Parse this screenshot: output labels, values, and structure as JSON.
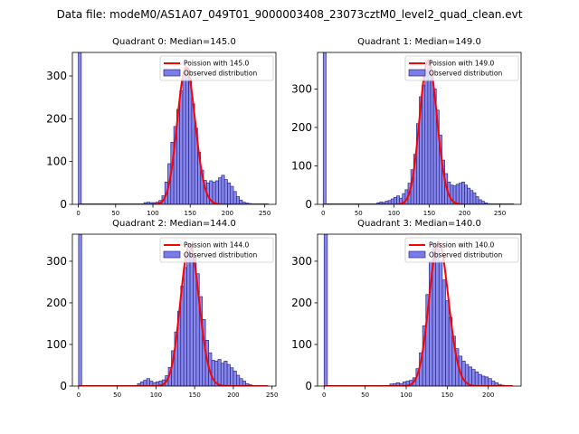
{
  "figure_title": "Data file: modeM0/AS1A07_049T01_9000003408_23073cztM0_level2_quad_clean.evt",
  "colors": {
    "bar_fill": "#7b7bea",
    "bar_edge": "#2a2a8c",
    "poisson_line": "#ff0000",
    "axes": "#000000"
  },
  "chart_data": [
    {
      "type": "bar",
      "title": "Quadrant 0: Median=145.0",
      "median": 145.0,
      "xlim": [
        -8,
        265
      ],
      "ylim": [
        0,
        355
      ],
      "xticks": [
        0,
        50,
        100,
        150,
        200,
        250
      ],
      "yticks": [
        0,
        100,
        200,
        300
      ],
      "bin_width": 4,
      "bins": [
        [
          0,
          355
        ],
        [
          88,
          4
        ],
        [
          92,
          5
        ],
        [
          96,
          4
        ],
        [
          100,
          4
        ],
        [
          104,
          5
        ],
        [
          108,
          9
        ],
        [
          112,
          20
        ],
        [
          116,
          52
        ],
        [
          120,
          95
        ],
        [
          124,
          145
        ],
        [
          128,
          182
        ],
        [
          132,
          222
        ],
        [
          136,
          265
        ],
        [
          140,
          305
        ],
        [
          144,
          320
        ],
        [
          148,
          292
        ],
        [
          152,
          235
        ],
        [
          156,
          178
        ],
        [
          160,
          122
        ],
        [
          164,
          80
        ],
        [
          168,
          56
        ],
        [
          172,
          50
        ],
        [
          176,
          55
        ],
        [
          180,
          52
        ],
        [
          184,
          55
        ],
        [
          188,
          62
        ],
        [
          192,
          68
        ],
        [
          196,
          58
        ],
        [
          200,
          50
        ],
        [
          204,
          42
        ],
        [
          208,
          30
        ],
        [
          212,
          18
        ],
        [
          216,
          10
        ],
        [
          220,
          5
        ],
        [
          224,
          3
        ],
        [
          228,
          2
        ]
      ],
      "legend": {
        "line_label": "Poission with 145.0",
        "bar_label": "Observed distribution",
        "location": "upper right"
      }
    },
    {
      "type": "bar",
      "title": "Quadrant 1: Median=149.0",
      "median": 149.0,
      "xlim": [
        -8,
        280
      ],
      "ylim": [
        0,
        395
      ],
      "xticks": [
        0,
        50,
        100,
        150,
        200,
        250
      ],
      "yticks": [
        0,
        100,
        200,
        300
      ],
      "bin_width": 4,
      "bins": [
        [
          0,
          395
        ],
        [
          76,
          4
        ],
        [
          80,
          6
        ],
        [
          84,
          5
        ],
        [
          88,
          8
        ],
        [
          92,
          10
        ],
        [
          96,
          14
        ],
        [
          100,
          18
        ],
        [
          104,
          22
        ],
        [
          108,
          16
        ],
        [
          112,
          28
        ],
        [
          116,
          38
        ],
        [
          120,
          55
        ],
        [
          124,
          90
        ],
        [
          128,
          130
        ],
        [
          132,
          210
        ],
        [
          136,
          280
        ],
        [
          140,
          310
        ],
        [
          144,
          350
        ],
        [
          148,
          375
        ],
        [
          152,
          340
        ],
        [
          156,
          300
        ],
        [
          160,
          245
        ],
        [
          164,
          180
        ],
        [
          168,
          115
        ],
        [
          172,
          80
        ],
        [
          176,
          58
        ],
        [
          180,
          50
        ],
        [
          184,
          48
        ],
        [
          188,
          52
        ],
        [
          192,
          55
        ],
        [
          196,
          58
        ],
        [
          200,
          50
        ],
        [
          204,
          42
        ],
        [
          208,
          36
        ],
        [
          212,
          30
        ],
        [
          216,
          20
        ],
        [
          220,
          12
        ],
        [
          224,
          8
        ],
        [
          228,
          4
        ],
        [
          232,
          2
        ]
      ],
      "legend": {
        "line_label": "Poission with 149.0",
        "bar_label": "Observed distribution",
        "location": "upper right"
      }
    },
    {
      "type": "bar",
      "title": "Quadrant 2: Median=144.0",
      "median": 144.0,
      "xlim": [
        -8,
        255
      ],
      "ylim": [
        0,
        365
      ],
      "xticks": [
        0,
        50,
        100,
        150,
        200,
        250
      ],
      "yticks": [
        0,
        100,
        200,
        300
      ],
      "bin_width": 4,
      "bins": [
        [
          0,
          365
        ],
        [
          76,
          6
        ],
        [
          80,
          10
        ],
        [
          84,
          14
        ],
        [
          88,
          18
        ],
        [
          92,
          12
        ],
        [
          96,
          8
        ],
        [
          100,
          10
        ],
        [
          104,
          12
        ],
        [
          108,
          15
        ],
        [
          112,
          25
        ],
        [
          116,
          45
        ],
        [
          120,
          85
        ],
        [
          124,
          130
        ],
        [
          128,
          180
        ],
        [
          132,
          240
        ],
        [
          136,
          285
        ],
        [
          140,
          325
        ],
        [
          144,
          340
        ],
        [
          148,
          310
        ],
        [
          152,
          270
        ],
        [
          156,
          215
        ],
        [
          160,
          160
        ],
        [
          164,
          110
        ],
        [
          168,
          80
        ],
        [
          172,
          62
        ],
        [
          176,
          60
        ],
        [
          180,
          64
        ],
        [
          184,
          55
        ],
        [
          188,
          60
        ],
        [
          192,
          52
        ],
        [
          196,
          44
        ],
        [
          200,
          36
        ],
        [
          204,
          26
        ],
        [
          208,
          18
        ],
        [
          212,
          12
        ],
        [
          216,
          6
        ],
        [
          220,
          3
        ]
      ],
      "legend": {
        "line_label": "Poission with 144.0",
        "bar_label": "Observed distribution",
        "location": "upper right"
      }
    },
    {
      "type": "bar",
      "title": "Quadrant 3: Median=140.0",
      "median": 140.0,
      "xlim": [
        -8,
        240
      ],
      "ylim": [
        0,
        365
      ],
      "xticks": [
        0,
        50,
        100,
        150,
        200
      ],
      "yticks": [
        0,
        100,
        200,
        300
      ],
      "bin_width": 4,
      "bins": [
        [
          0,
          365
        ],
        [
          80,
          5
        ],
        [
          84,
          6
        ],
        [
          88,
          8
        ],
        [
          92,
          6
        ],
        [
          96,
          10
        ],
        [
          100,
          12
        ],
        [
          104,
          14
        ],
        [
          108,
          20
        ],
        [
          112,
          42
        ],
        [
          116,
          80
        ],
        [
          120,
          145
        ],
        [
          124,
          220
        ],
        [
          128,
          300
        ],
        [
          132,
          345
        ],
        [
          136,
          330
        ],
        [
          140,
          300
        ],
        [
          144,
          255
        ],
        [
          148,
          205
        ],
        [
          152,
          165
        ],
        [
          156,
          120
        ],
        [
          160,
          90
        ],
        [
          164,
          72
        ],
        [
          168,
          60
        ],
        [
          172,
          52
        ],
        [
          176,
          46
        ],
        [
          180,
          40
        ],
        [
          184,
          34
        ],
        [
          188,
          28
        ],
        [
          192,
          24
        ],
        [
          196,
          22
        ],
        [
          200,
          18
        ],
        [
          204,
          12
        ],
        [
          208,
          8
        ],
        [
          212,
          4
        ],
        [
          216,
          2
        ]
      ],
      "legend": {
        "line_label": "Poission with 140.0",
        "bar_label": "Observed distribution",
        "location": "upper right"
      }
    }
  ]
}
